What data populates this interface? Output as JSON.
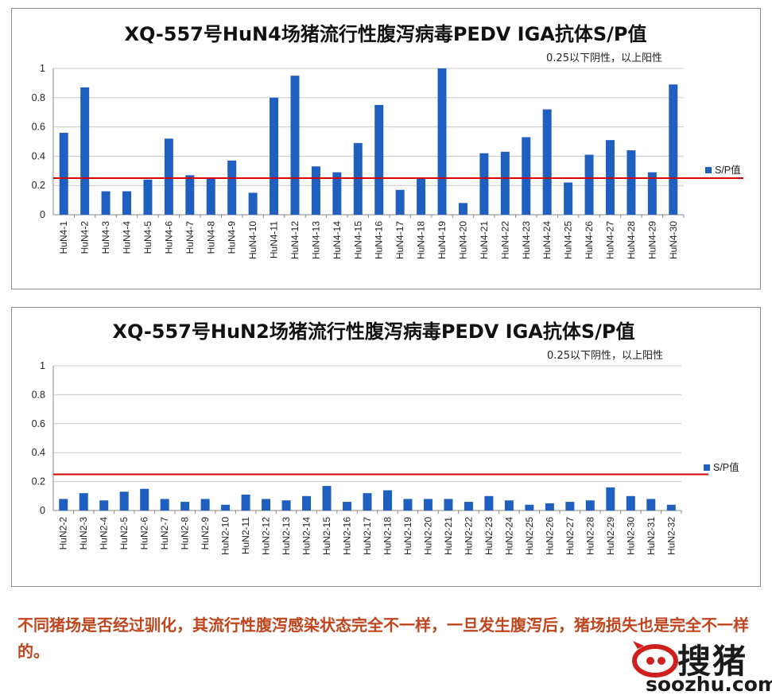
{
  "chart_data": [
    {
      "type": "bar",
      "title": "XQ-557号HuN4场猪流行性腹泻病毒PEDV IGA抗体S/P值",
      "note": "0.25以下阴性，以上阳性",
      "xlabel": "",
      "ylabel": "",
      "ylim": [
        0,
        1
      ],
      "yticks": [
        "0",
        "0.2",
        "0.4",
        "0.6",
        "0.8",
        "1"
      ],
      "grid": true,
      "legend_position": "right",
      "threshold": 0.25,
      "categories": [
        "HuN4-1",
        "HuN4-2",
        "HuN4-3",
        "HuN4-4",
        "HuN4-5",
        "HuN4-6",
        "HuN4-7",
        "HuN4-8",
        "HuN4-9",
        "HuN4-10",
        "HuN4-11",
        "HuN4-12",
        "HuN4-13",
        "HuN4-14",
        "HuN4-15",
        "HuN4-16",
        "HuN4-17",
        "HuN4-18",
        "HuN4-19",
        "HuN4-20",
        "HuN4-21",
        "HuN4-22",
        "HuN4-23",
        "HuN4-24",
        "HuN4-25",
        "HuN4-26",
        "HuN4-27",
        "HuN4-28",
        "HuN4-29",
        "HuN4-30"
      ],
      "series": [
        {
          "name": "S/P值",
          "color": "#1f5fbf",
          "values": [
            0.56,
            0.87,
            0.16,
            0.16,
            0.24,
            0.52,
            0.27,
            0.25,
            0.37,
            0.15,
            0.8,
            0.95,
            0.33,
            0.29,
            0.49,
            0.75,
            0.17,
            0.25,
            1.0,
            0.08,
            0.42,
            0.43,
            0.53,
            0.72,
            0.22,
            0.41,
            0.51,
            0.44,
            0.29,
            0.89
          ]
        }
      ]
    },
    {
      "type": "bar",
      "title": "XQ-557号HuN2场猪流行性腹泻病毒PEDV IGA抗体S/P值",
      "note": "0.25以下阴性，以上阳性",
      "xlabel": "",
      "ylabel": "",
      "ylim": [
        0,
        1
      ],
      "yticks": [
        "0",
        "0.2",
        "0.4",
        "0.6",
        "0.8",
        "1"
      ],
      "grid": true,
      "legend_position": "right",
      "threshold": 0.25,
      "categories": [
        "HuN2-2",
        "HuN2-3",
        "HuN2-4",
        "HuN2-5",
        "HuN2-6",
        "HuN2-7",
        "HuN2-8",
        "HuN2-9",
        "HuN2-10",
        "HuN2-11",
        "HuN2-12",
        "HuN2-13",
        "HuN2-14",
        "HuN2-15",
        "HuN2-16",
        "HuN2-17",
        "HuN2-18",
        "HuN2-19",
        "HuN2-20",
        "HuN2-21",
        "HuN2-22",
        "HuN2-23",
        "HuN2-24",
        "HuN2-25",
        "HuN2-26",
        "HuN2-27",
        "HuN2-28",
        "HuN2-29",
        "HuN2-30",
        "HuN2-31",
        "HuN2-32"
      ],
      "series": [
        {
          "name": "S/P值",
          "color": "#1f5fbf",
          "values": [
            0.08,
            0.12,
            0.07,
            0.13,
            0.15,
            0.08,
            0.06,
            0.08,
            0.04,
            0.11,
            0.08,
            0.07,
            0.1,
            0.17,
            0.06,
            0.12,
            0.14,
            0.08,
            0.08,
            0.08,
            0.06,
            0.1,
            0.07,
            0.04,
            0.05,
            0.06,
            0.07,
            0.16,
            0.1,
            0.08,
            0.04
          ]
        }
      ]
    }
  ],
  "threshold_color": "#d40000",
  "caption": "不同猪场是否经过驯化，其流行性腹泻感染状态完全不一样，一旦发生腹泻后，猪场损失也是完全不一样的。",
  "logo": {
    "name": "搜猪",
    "url": "soozhu.com",
    "icon": "pig-logo-icon",
    "color": "#d01f1f"
  }
}
